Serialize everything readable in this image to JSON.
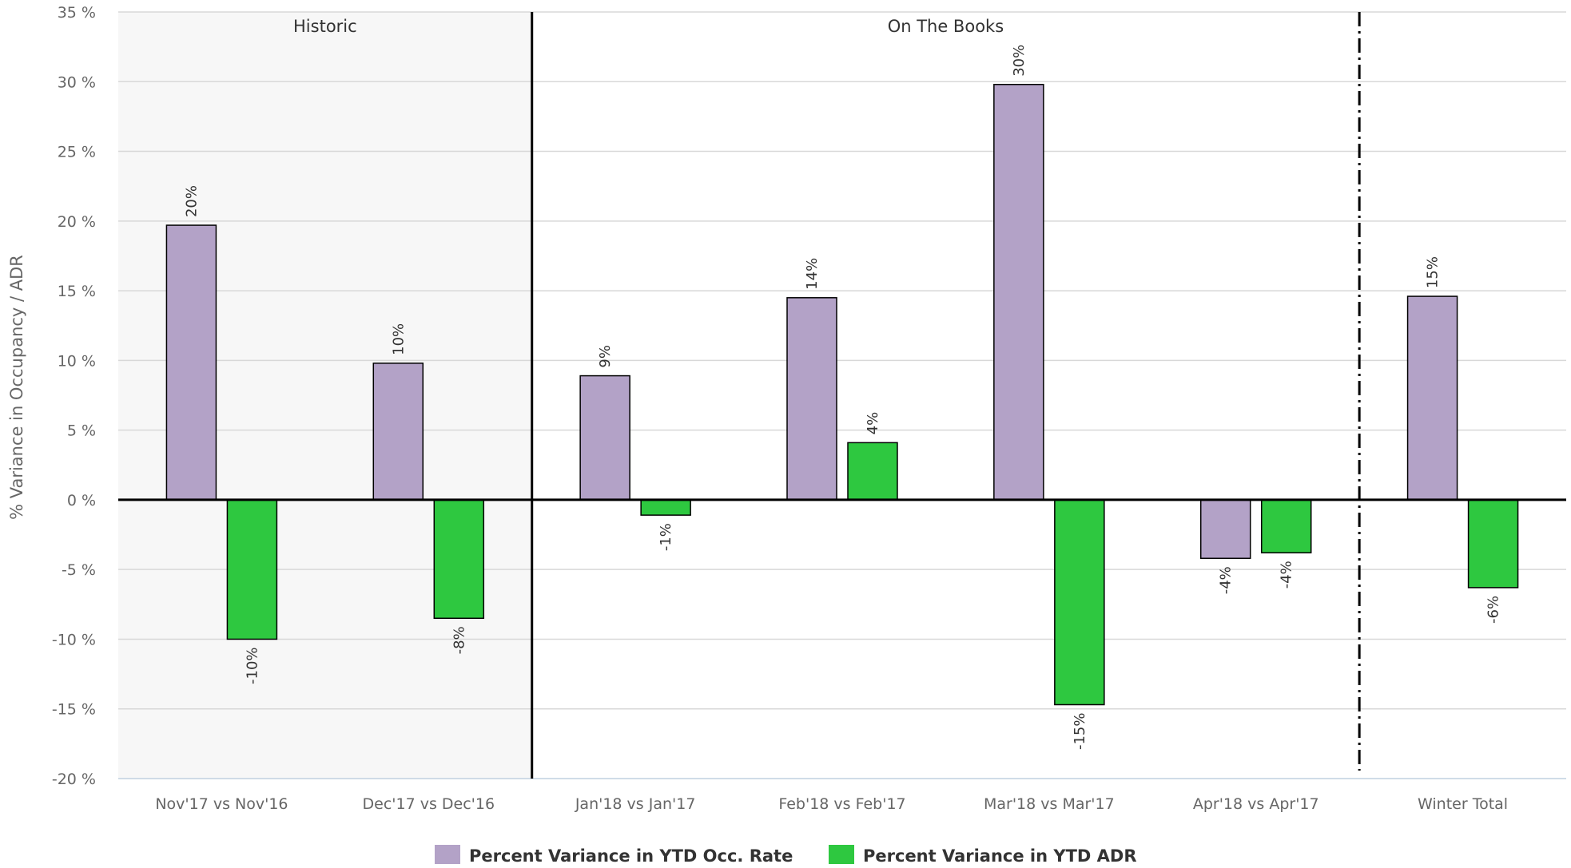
{
  "chart_data": {
    "type": "bar",
    "ylabel": "% Variance in Occupancy / ADR",
    "ylim": [
      -20,
      35
    ],
    "ytick_step": 5,
    "ytick_labels": [
      "-20 %",
      "-15 %",
      "-10 %",
      "-5 %",
      "0 %",
      "5 %",
      "10 %",
      "15 %",
      "20 %",
      "25 %",
      "30 %",
      "35 %"
    ],
    "grid": true,
    "legend_position": "bottom",
    "categories": [
      "Nov'17 vs Nov'16",
      "Dec'17 vs Dec'16",
      "Jan'18 vs Jan'17",
      "Feb'18 vs Feb'17",
      "Mar'18 vs Mar'17",
      "Apr'18 vs Apr'17",
      "Winter Total"
    ],
    "series": [
      {
        "name": "Percent Variance in YTD Occ. Rate",
        "color": "#b3a2c7",
        "values": [
          19.7,
          9.8,
          8.9,
          14.5,
          29.8,
          -4.2,
          14.6
        ],
        "labels": [
          "20%",
          "10%",
          "9%",
          "14%",
          "30%",
          "-4%",
          "15%"
        ]
      },
      {
        "name": "Percent Variance in YTD ADR",
        "color": "#2ec840",
        "values": [
          -10.0,
          -8.5,
          -1.1,
          4.1,
          -14.7,
          -3.8,
          -6.3
        ],
        "labels": [
          "-10%",
          "-8%",
          "-1%",
          "4%",
          "-15%",
          "-4%",
          "-6%"
        ]
      }
    ],
    "regions": [
      {
        "label": "Historic",
        "from_category": 0,
        "to_category": 1,
        "shaded": true
      },
      {
        "label": "On The Books",
        "from_category": 2,
        "to_category": 5,
        "shaded": false
      }
    ]
  }
}
